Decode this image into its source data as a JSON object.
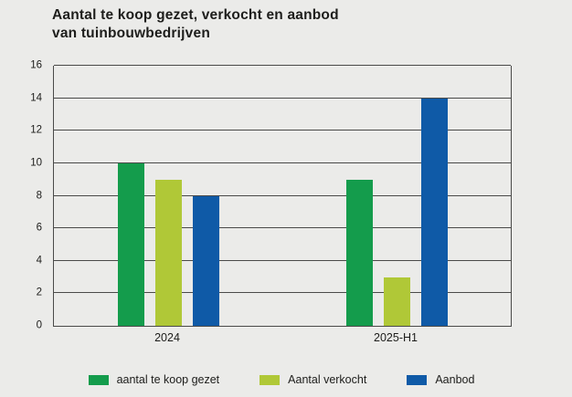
{
  "title": {
    "lines": [
      "Aantal te koop gezet, verkocht en aanbod",
      "van tuinbouwbedrijven"
    ]
  },
  "chart_data": {
    "type": "bar",
    "title": "Aantal te koop gezet, verkocht en aanbod van tuinbouwbedrijven",
    "categories": [
      "2024",
      "2025-H1"
    ],
    "series": [
      {
        "name": "aantal te koop gezet",
        "color": "#149c4c",
        "values": [
          10,
          9
        ]
      },
      {
        "name": "Aantal verkocht",
        "color": "#b0c837",
        "values": [
          9,
          3
        ]
      },
      {
        "name": "Aanbod",
        "color": "#0f5aa7",
        "values": [
          8,
          14
        ]
      }
    ],
    "xlabel": "",
    "ylabel": "",
    "ylim": [
      0,
      16
    ],
    "yticks": [
      0,
      2,
      4,
      6,
      8,
      10,
      12,
      14,
      16
    ],
    "grid": true,
    "legend_position": "bottom"
  },
  "colors": {
    "background": "#ebebe9",
    "gridline": "#4a4a49",
    "text": "#1d1d1b"
  }
}
